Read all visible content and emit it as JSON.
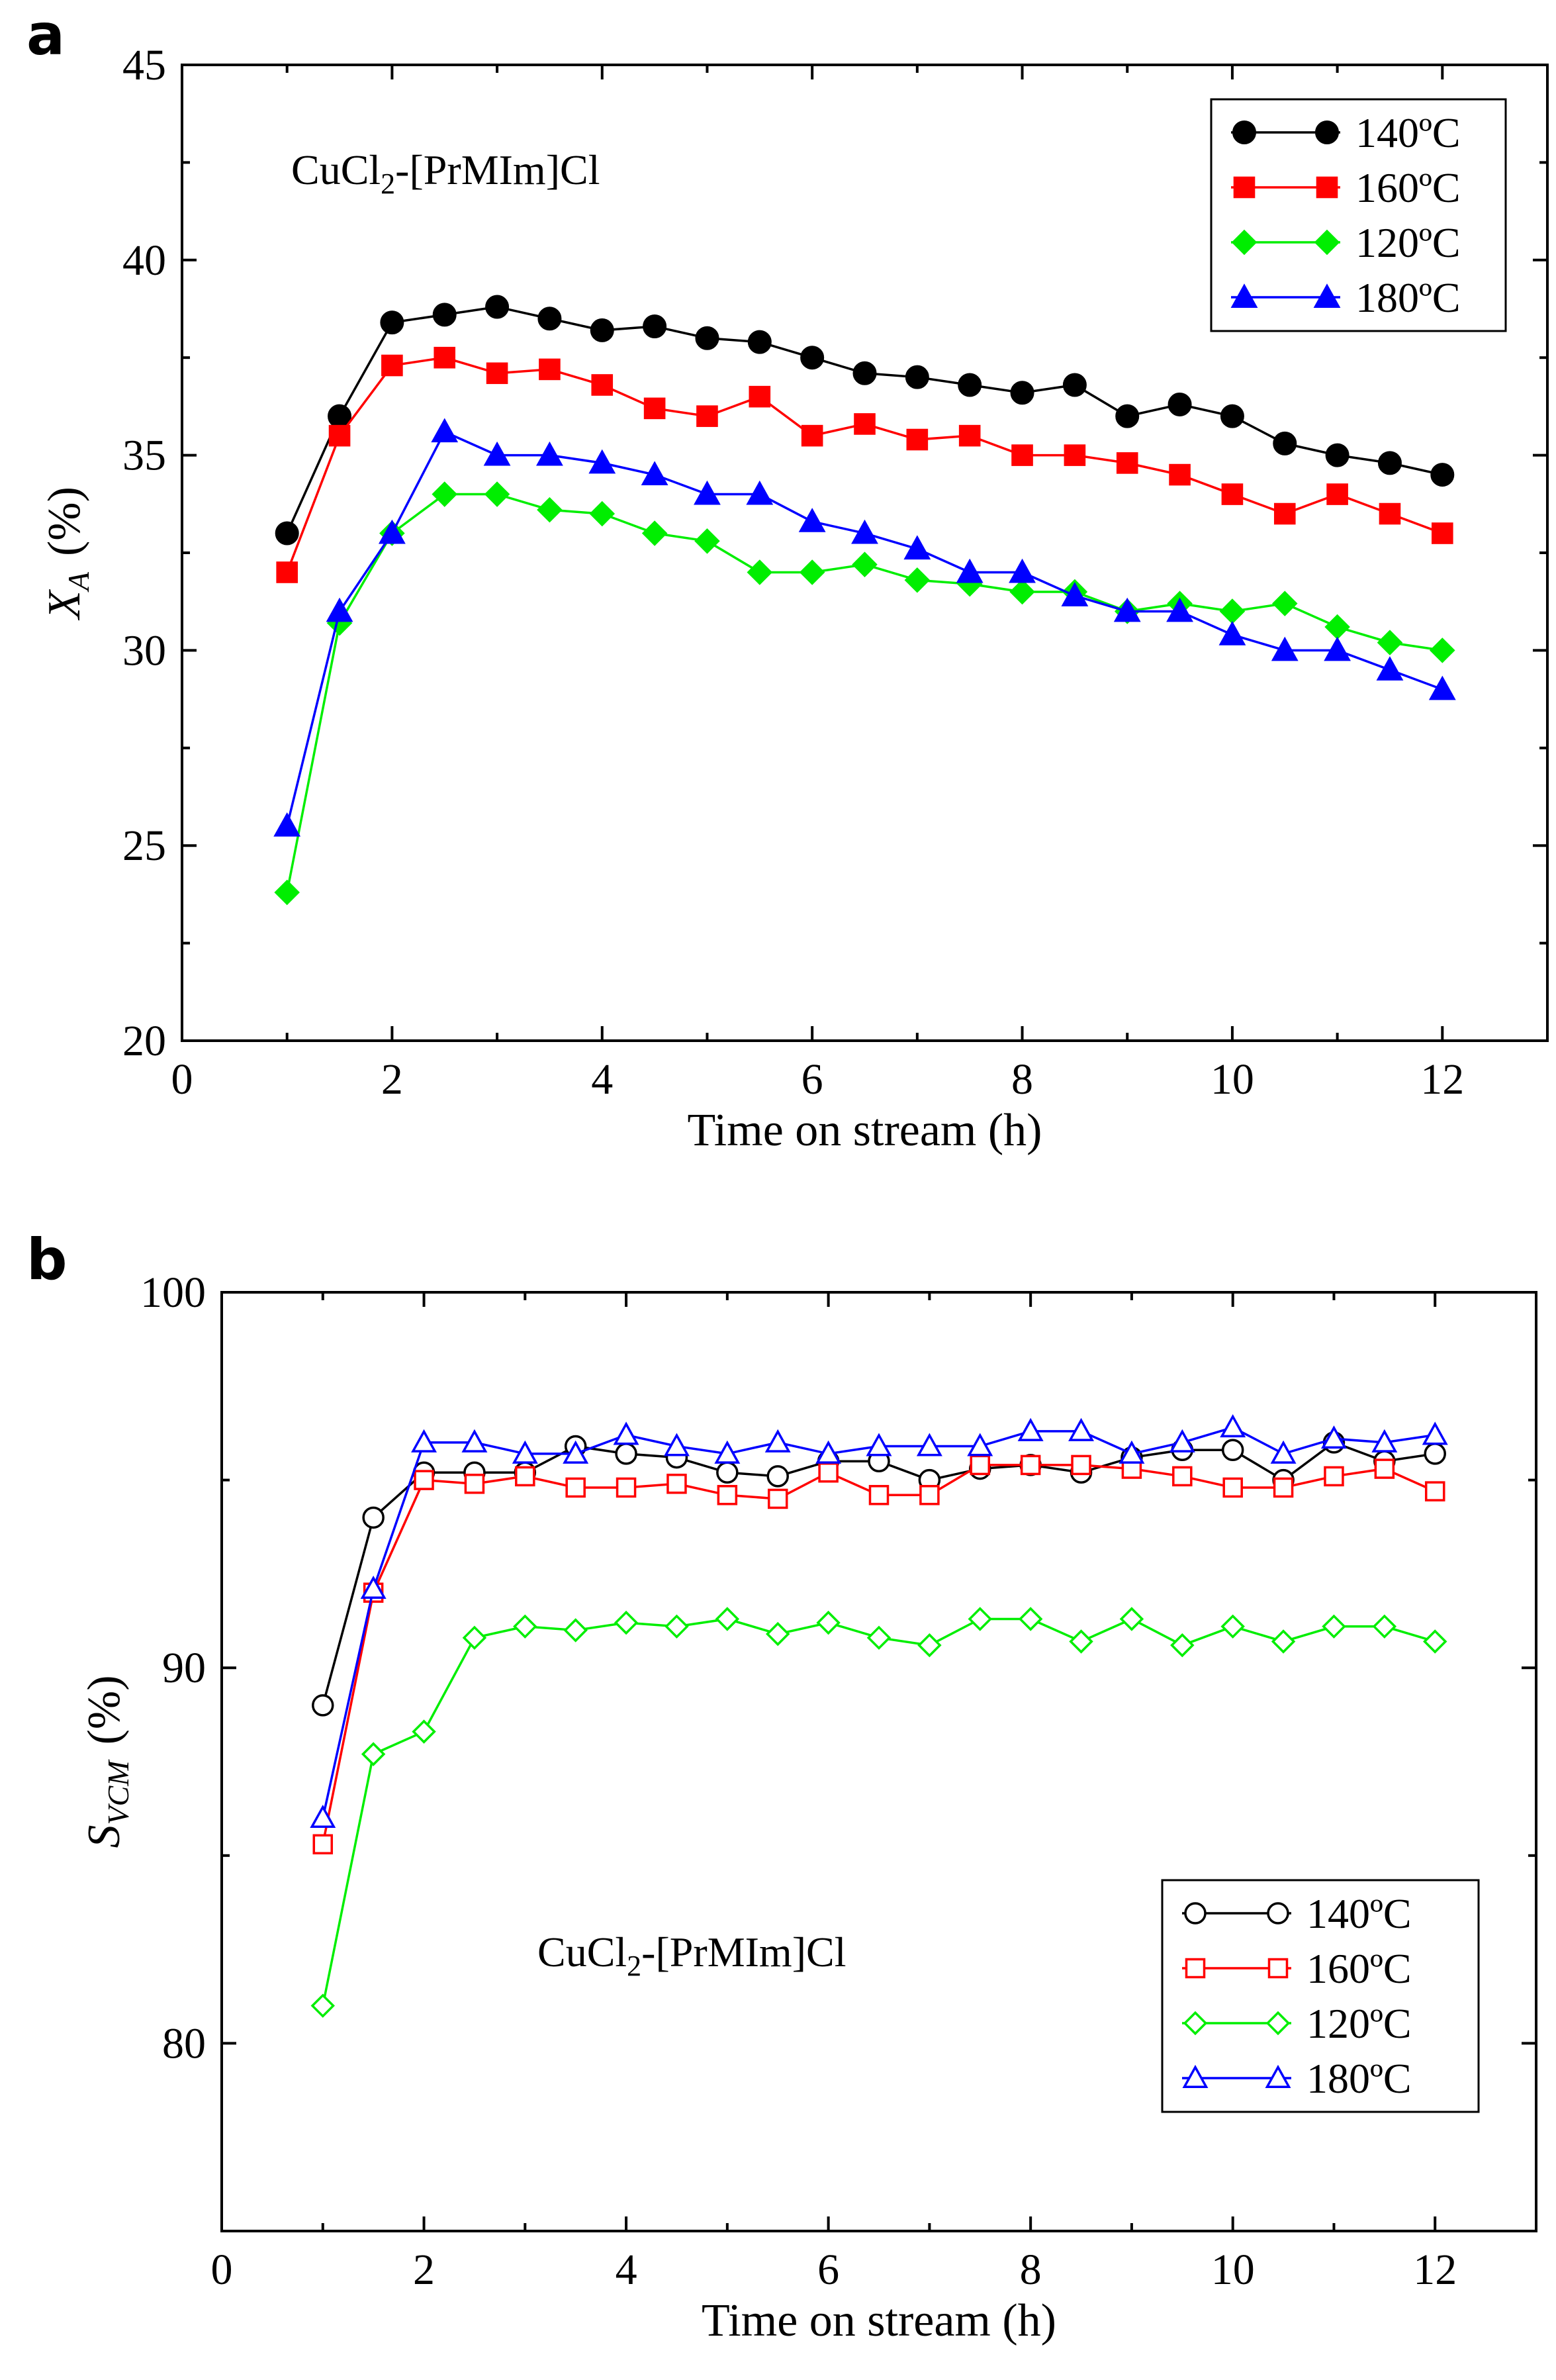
{
  "chart_data": [
    {
      "panel": "a",
      "type": "line",
      "title": "",
      "annotation": {
        "main": "CuCl",
        "sub": "2",
        "rest": "-[PrMIm]Cl"
      },
      "xlabel": "Time on stream (h)",
      "ylabel": {
        "main": "X",
        "sub": "A",
        "unit": "(%)"
      },
      "xlim": [
        0,
        13
      ],
      "ylim": [
        20,
        45
      ],
      "xticks": [
        "0",
        "2",
        "4",
        "6",
        "8",
        "10",
        "12"
      ],
      "yticks": [
        "20",
        "25",
        "30",
        "35",
        "40",
        "45"
      ],
      "legend_position": "top-right",
      "marker_fill": "filled",
      "x": [
        1,
        1.5,
        2,
        2.5,
        3,
        3.5,
        4,
        4.5,
        5,
        5.5,
        6,
        6.5,
        7,
        7.5,
        8,
        8.5,
        9,
        9.5,
        10,
        10.5,
        11,
        11.5,
        12
      ],
      "series": [
        {
          "name": "140ºC",
          "color": "#000000",
          "marker": "circle",
          "values": [
            33.0,
            36.0,
            38.4,
            38.6,
            38.8,
            38.5,
            38.2,
            38.3,
            38.0,
            37.9,
            37.5,
            37.1,
            37.0,
            36.8,
            36.6,
            36.8,
            36.0,
            36.3,
            36.0,
            35.3,
            35.0,
            34.8,
            34.5
          ]
        },
        {
          "name": "160ºC",
          "color": "#ff0000",
          "marker": "square",
          "values": [
            32.0,
            35.5,
            37.3,
            37.5,
            37.1,
            37.2,
            36.8,
            36.2,
            36.0,
            36.5,
            35.5,
            35.8,
            35.4,
            35.5,
            35.0,
            35.0,
            34.8,
            34.5,
            34.0,
            33.5,
            34.0,
            33.5,
            33.0
          ]
        },
        {
          "name": "120ºC",
          "color": "#00ee00",
          "marker": "diamond",
          "values": [
            23.8,
            30.7,
            33.0,
            34.0,
            34.0,
            33.6,
            33.5,
            33.0,
            32.8,
            32.0,
            32.0,
            32.2,
            31.8,
            31.7,
            31.5,
            31.5,
            31.0,
            31.2,
            31.0,
            31.2,
            30.6,
            30.2,
            30.0
          ]
        },
        {
          "name": "180ºC",
          "color": "#0000ff",
          "marker": "triangle",
          "values": [
            25.5,
            31.0,
            33.0,
            35.6,
            35.0,
            35.0,
            34.8,
            34.5,
            34.0,
            34.0,
            33.3,
            33.0,
            32.6,
            32.0,
            32.0,
            31.4,
            31.0,
            31.0,
            30.4,
            30.0,
            30.0,
            29.5,
            29.0
          ]
        }
      ]
    },
    {
      "panel": "b",
      "type": "line",
      "title": "",
      "annotation": {
        "main": "CuCl",
        "sub": "2",
        "rest": "-[PrMIm]Cl"
      },
      "xlabel": "Time on stream (h)",
      "ylabel": {
        "main": "S",
        "sub": "VCM",
        "unit": "(%)"
      },
      "xlim": [
        0,
        13
      ],
      "ylim": [
        75,
        100
      ],
      "xticks": [
        "0",
        "2",
        "4",
        "6",
        "8",
        "10",
        "12"
      ],
      "yticks": [
        "80",
        "90",
        "100"
      ],
      "legend_position": "bottom-right",
      "marker_fill": "open",
      "x": [
        1,
        1.5,
        2,
        2.5,
        3,
        3.5,
        4,
        4.5,
        5,
        5.5,
        6,
        6.5,
        7,
        7.5,
        8,
        8.5,
        9,
        9.5,
        10,
        10.5,
        11,
        11.5,
        12
      ],
      "series": [
        {
          "name": "140ºC",
          "color": "#000000",
          "marker": "circle",
          "values": [
            89.0,
            94.0,
            95.2,
            95.2,
            95.2,
            95.9,
            95.7,
            95.6,
            95.2,
            95.1,
            95.5,
            95.5,
            95.0,
            95.3,
            95.4,
            95.2,
            95.6,
            95.8,
            95.8,
            95.0,
            96.0,
            95.5,
            95.7
          ]
        },
        {
          "name": "160ºC",
          "color": "#ff0000",
          "marker": "square",
          "values": [
            85.3,
            92.0,
            95.0,
            94.9,
            95.1,
            94.8,
            94.8,
            94.9,
            94.6,
            94.5,
            95.2,
            94.6,
            94.6,
            95.4,
            95.4,
            95.4,
            95.3,
            95.1,
            94.8,
            94.8,
            95.1,
            95.3,
            94.7
          ]
        },
        {
          "name": "120ºC",
          "color": "#00ee00",
          "marker": "diamond",
          "values": [
            81.0,
            87.7,
            88.3,
            90.8,
            91.1,
            91.0,
            91.2,
            91.1,
            91.3,
            90.9,
            91.2,
            90.8,
            90.6,
            91.3,
            91.3,
            90.7,
            91.3,
            90.6,
            91.1,
            90.7,
            91.1,
            91.1,
            90.7
          ]
        },
        {
          "name": "180ºC",
          "color": "#0000ff",
          "marker": "triangle",
          "values": [
            86.0,
            92.1,
            96.0,
            96.0,
            95.7,
            95.7,
            96.2,
            95.9,
            95.7,
            96.0,
            95.7,
            95.9,
            95.9,
            95.9,
            96.3,
            96.3,
            95.7,
            96.0,
            96.4,
            95.7,
            96.1,
            96.0,
            96.2
          ]
        }
      ]
    }
  ],
  "panel_letters": [
    "a",
    "b"
  ]
}
